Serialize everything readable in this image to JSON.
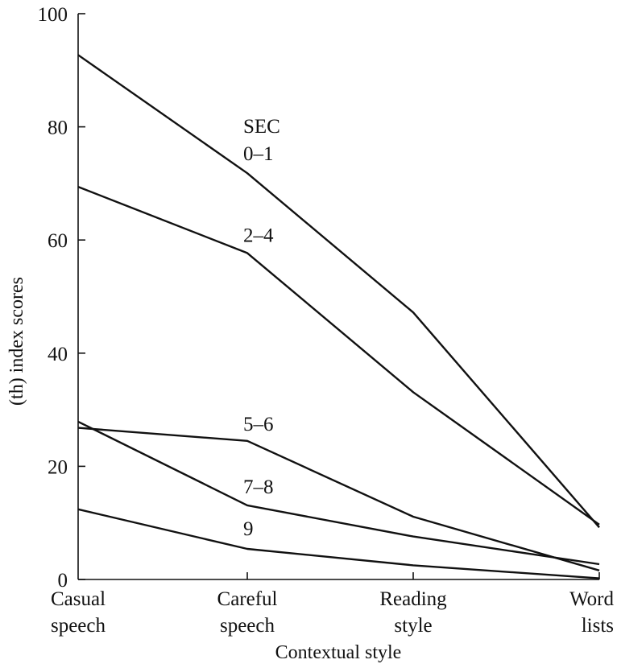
{
  "chart_data": {
    "type": "line",
    "title": "",
    "xlabel": "Contextual style",
    "ylabel": "(th) index scores",
    "ylim": [
      0,
      100
    ],
    "yticks": [
      0,
      20,
      40,
      60,
      80,
      100
    ],
    "categories": [
      [
        "Casual",
        "speech"
      ],
      [
        "Careful",
        "speech"
      ],
      [
        "Reading",
        "style"
      ],
      [
        "Word",
        "lists"
      ]
    ],
    "grid": false,
    "legend": "none",
    "series": [
      {
        "name": "0–1",
        "values": [
          92.7,
          71.8,
          47.2,
          9.2
        ]
      },
      {
        "name": "2–4",
        "values": [
          69.4,
          57.7,
          33.1,
          9.7
        ]
      },
      {
        "name": "5–6",
        "values": [
          26.8,
          24.5,
          11.1,
          1.6
        ]
      },
      {
        "name": "7–8",
        "values": [
          27.9,
          13.1,
          7.6,
          2.7
        ]
      },
      {
        "name": "9",
        "values": [
          12.4,
          5.4,
          2.5,
          0.2
        ]
      }
    ],
    "annotations": [
      {
        "text": "SEC",
        "series": "0–1"
      }
    ]
  }
}
